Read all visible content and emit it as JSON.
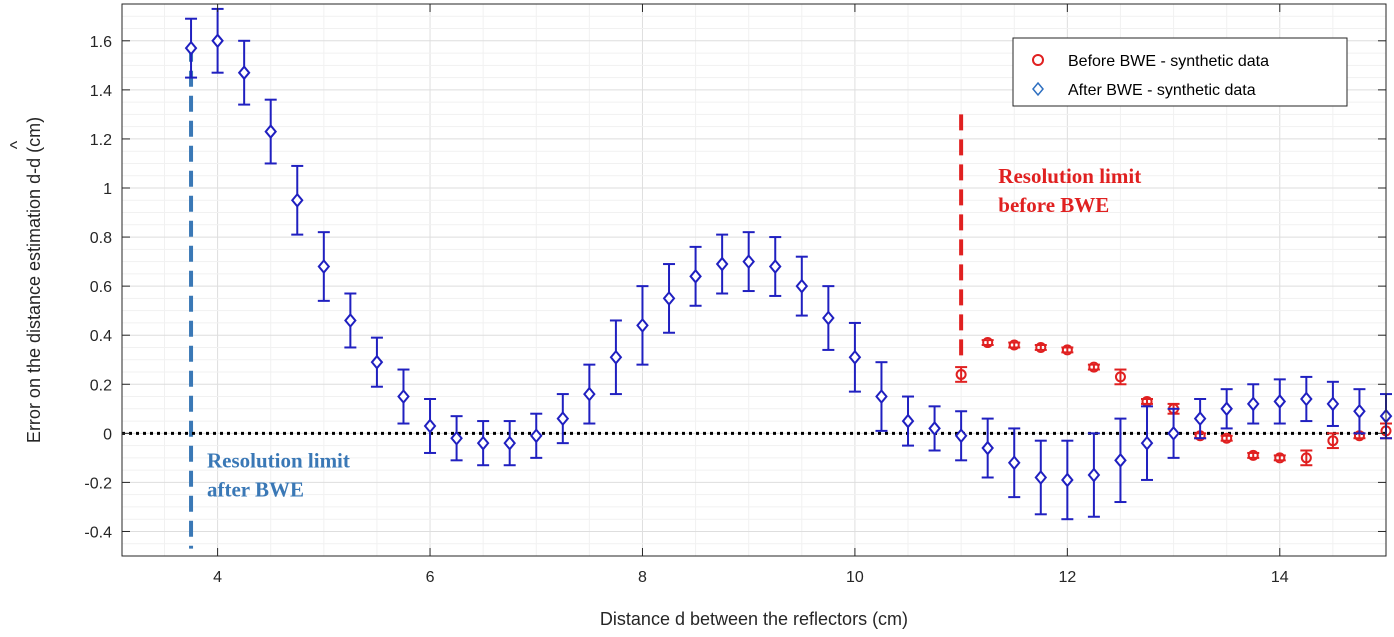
{
  "chart_data": {
    "type": "scatter",
    "title": "",
    "xlabel": "Distance d between the reflectors (cm)",
    "ylabel": "Error on the distance estimation d-d (cm)",
    "ylabel_hat_mark": "^",
    "xlim": [
      3.1,
      15.0
    ],
    "ylim": [
      -0.5,
      1.75
    ],
    "xticks": [
      4,
      6,
      8,
      10,
      12,
      14
    ],
    "xtick_labels": [
      "4",
      "6",
      "8",
      "10",
      "12",
      "14"
    ],
    "yticks": [
      -0.4,
      -0.2,
      0,
      0.2,
      0.4,
      0.6,
      0.8,
      1,
      1.2,
      1.4,
      1.6
    ],
    "ytick_labels": [
      "-0.4",
      "-0.2",
      "0",
      "0.2",
      "0.4",
      "0.6",
      "0.8",
      "1",
      "1.2",
      "1.4",
      "1.6"
    ],
    "grid": true,
    "legend_position": "top-right",
    "zero_line": {
      "y": 0,
      "style": "dotted",
      "color": "#000000"
    },
    "series": [
      {
        "name": "Before BWE - synthetic data",
        "marker": "circle",
        "color": "#e02020",
        "x": [
          11.0,
          11.25,
          11.5,
          11.75,
          12.0,
          12.25,
          12.5,
          12.75,
          13.0,
          13.25,
          13.5,
          13.75,
          14.0,
          14.25,
          14.5,
          14.75,
          15.0
        ],
        "y": [
          0.24,
          0.37,
          0.36,
          0.35,
          0.34,
          0.27,
          0.23,
          0.13,
          0.1,
          -0.01,
          -0.02,
          -0.09,
          -0.1,
          -0.1,
          -0.03,
          -0.01,
          0.01
        ],
        "err": [
          0.03,
          0.01,
          0.01,
          0.01,
          0.01,
          0.01,
          0.03,
          0.01,
          0.02,
          0.01,
          0.01,
          0.01,
          0.01,
          0.03,
          0.03,
          0.01,
          0.03
        ]
      },
      {
        "name": "After BWE - synthetic data",
        "marker": "diamond",
        "color": "#2020c0",
        "x": [
          3.75,
          4.0,
          4.25,
          4.5,
          4.75,
          5.0,
          5.25,
          5.5,
          5.75,
          6.0,
          6.25,
          6.5,
          6.75,
          7.0,
          7.25,
          7.5,
          7.75,
          8.0,
          8.25,
          8.5,
          8.75,
          9.0,
          9.25,
          9.5,
          9.75,
          10.0,
          10.25,
          10.5,
          10.75,
          11.0,
          11.25,
          11.5,
          11.75,
          12.0,
          12.25,
          12.5,
          12.75,
          13.0,
          13.25,
          13.5,
          13.75,
          14.0,
          14.25,
          14.5,
          14.75,
          15.0
        ],
        "y": [
          1.57,
          1.6,
          1.47,
          1.23,
          0.95,
          0.68,
          0.46,
          0.29,
          0.15,
          0.03,
          -0.02,
          -0.04,
          -0.04,
          -0.01,
          0.06,
          0.16,
          0.31,
          0.44,
          0.55,
          0.64,
          0.69,
          0.7,
          0.68,
          0.6,
          0.47,
          0.31,
          0.15,
          0.05,
          0.02,
          -0.01,
          -0.06,
          -0.12,
          -0.18,
          -0.19,
          -0.17,
          -0.11,
          -0.04,
          0.0,
          0.06,
          0.1,
          0.12,
          0.13,
          0.14,
          0.12,
          0.09,
          0.07
        ],
        "err": [
          0.12,
          0.13,
          0.13,
          0.13,
          0.14,
          0.14,
          0.11,
          0.1,
          0.11,
          0.11,
          0.09,
          0.09,
          0.09,
          0.09,
          0.1,
          0.12,
          0.15,
          0.16,
          0.14,
          0.12,
          0.12,
          0.12,
          0.12,
          0.12,
          0.13,
          0.14,
          0.14,
          0.1,
          0.09,
          0.1,
          0.12,
          0.14,
          0.15,
          0.16,
          0.17,
          0.17,
          0.15,
          0.1,
          0.08,
          0.08,
          0.08,
          0.09,
          0.09,
          0.09,
          0.09,
          0.09
        ]
      }
    ],
    "reference_lines": [
      {
        "x": 3.75,
        "y_range": [
          -0.47,
          1.58
        ],
        "color": "#3a78b6",
        "style": "dashed"
      },
      {
        "x": 11.0,
        "y_range": [
          0.31,
          1.3
        ],
        "color": "#e02020",
        "style": "dashed"
      }
    ],
    "annotations": [
      {
        "lines": [
          "Resolution limit",
          "after BWE"
        ],
        "color": "#3a78b6",
        "x": 3.9,
        "y": -0.14
      },
      {
        "lines": [
          "Resolution limit",
          "before BWE"
        ],
        "color": "#e02020",
        "x": 11.35,
        "y": 1.02
      }
    ]
  }
}
